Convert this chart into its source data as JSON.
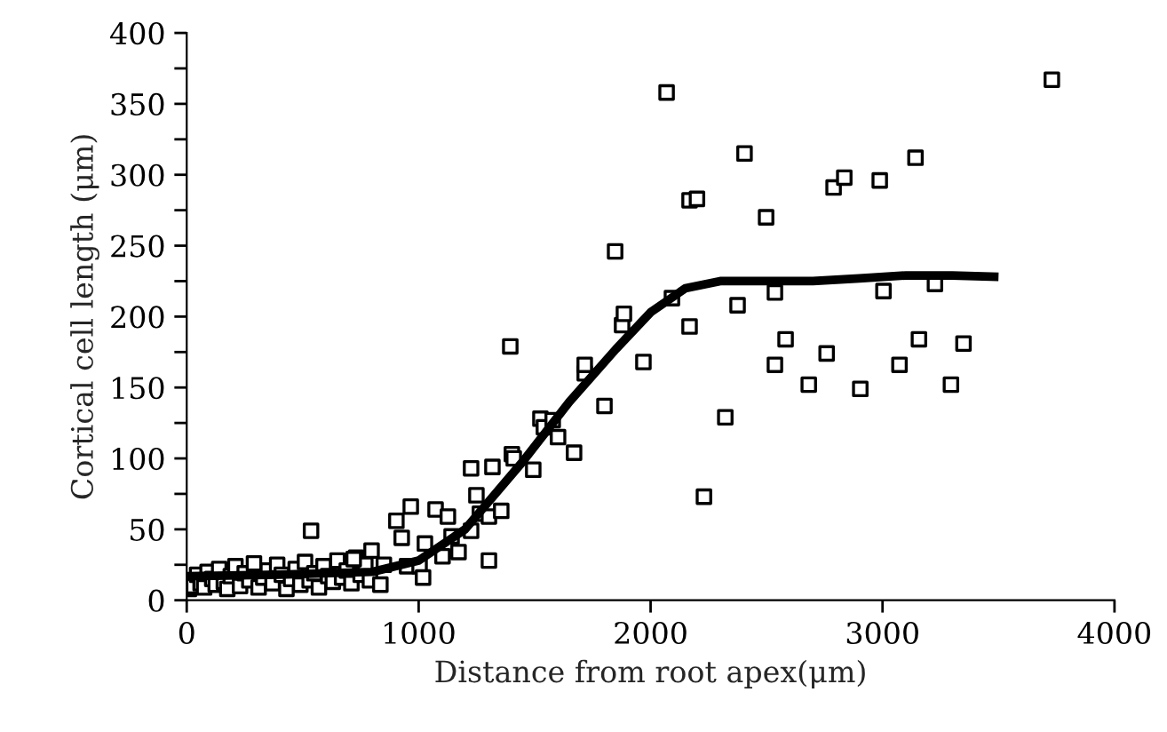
{
  "chart_data": {
    "type": "scatter",
    "xlabel": "Distance from root apex(μm)",
    "ylabel": "Cortical cell length (μm)",
    "xlim": [
      0,
      4000
    ],
    "xticks": [
      0,
      1000,
      2000,
      3000,
      4000
    ],
    "ylim": [
      0,
      400
    ],
    "yticks": [
      0,
      {
        "value": 25,
        "label": null
      },
      50,
      {
        "value": 75,
        "label": null
      },
      100,
      {
        "value": 125,
        "label": null
      },
      150,
      {
        "value": 175,
        "label": null
      },
      200,
      {
        "value": 225,
        "label": null
      },
      250,
      {
        "value": 275,
        "label": null
      },
      300,
      {
        "value": 325,
        "label": null
      },
      350,
      {
        "value": 375,
        "label": null
      },
      400
    ],
    "grid": false,
    "series": [
      {
        "marker": "square",
        "color": "#000000",
        "x": [
          10,
          30,
          45,
          60,
          75,
          90,
          110,
          125,
          140,
          160,
          175,
          190,
          210,
          230,
          250,
          270,
          290,
          310,
          330,
          350,
          370,
          390,
          410,
          430,
          450,
          470,
          490,
          510,
          530,
          550,
          570,
          590,
          610,
          630,
          650,
          670,
          690,
          710,
          730,
          750,
          770,
          790,
          536,
          720,
          797,
          835,
          850,
          904,
          927,
          950,
          966,
          1004,
          1019,
          1027,
          1073,
          1103,
          1126,
          1142,
          1172,
          1226,
          1226,
          1249,
          1264,
          1303,
          1303,
          1318,
          1356,
          1395,
          1402,
          1410,
          1494,
          1525,
          1540,
          1578,
          1601,
          1670,
          1716,
          1716,
          1801,
          1847,
          1877,
          1885,
          1969,
          2069,
          2092,
          2168,
          2168,
          2200,
          2230,
          2322,
          2375,
          2405,
          2498,
          2536,
          2536,
          2582,
          2682,
          2759,
          2789,
          2835,
          2904,
          2988,
          3004,
          3073,
          3142,
          3157,
          3226,
          3295,
          3349,
          3730
        ],
        "values": [
          8,
          10,
          18,
          12,
          9,
          20,
          15,
          11,
          22,
          13,
          8,
          17,
          24,
          10,
          19,
          14,
          26,
          9,
          16,
          21,
          12,
          25,
          18,
          8,
          15,
          22,
          11,
          27,
          14,
          19,
          9,
          24,
          17,
          13,
          28,
          16,
          21,
          12,
          30,
          18,
          25,
          14,
          49,
          29,
          35,
          11,
          25,
          56,
          44,
          24,
          66,
          24,
          16,
          40,
          64,
          31,
          59,
          45,
          34,
          93,
          49,
          74,
          61,
          59,
          28,
          94,
          63,
          179,
          103,
          100,
          92,
          128,
          122,
          127,
          115,
          104,
          160,
          166,
          137,
          246,
          194,
          202,
          168,
          358,
          213,
          282,
          193,
          283,
          73,
          129,
          208,
          315,
          270,
          217,
          166,
          184,
          152,
          174,
          291,
          298,
          149,
          296,
          218,
          166,
          312,
          184,
          223,
          152,
          181,
          367
        ]
      },
      {
        "type": "line",
        "marker": "none",
        "line_style": "solid",
        "color": "#000000",
        "x": [
          0,
          400,
          800,
          1000,
          1200,
          1450,
          1650,
          1850,
          2000,
          2150,
          2300,
          2500,
          2700,
          2900,
          3100,
          3300,
          3500
        ],
        "values": [
          17,
          18,
          20,
          28,
          50,
          98,
          140,
          177,
          203,
          220,
          225,
          225,
          225,
          227,
          229,
          229,
          228
        ]
      }
    ]
  }
}
